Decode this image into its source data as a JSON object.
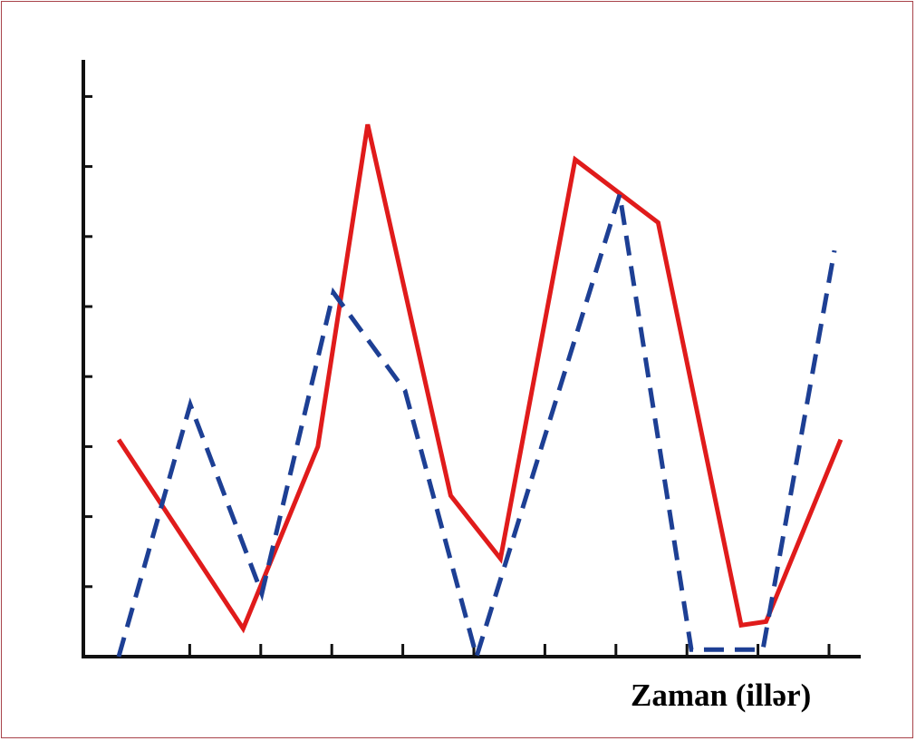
{
  "chart_data": {
    "type": "line",
    "xlabel": "Zaman (illər)",
    "ylabel": "",
    "title": "",
    "x_ticks": 10,
    "y_ticks": 8,
    "series": [
      {
        "style": "solid",
        "color": "#e01b1b",
        "points": [
          [
            0.5,
            3.1
          ],
          [
            2.0,
            0.4
          ],
          [
            2.9,
            3.0
          ],
          [
            3.5,
            7.6
          ],
          [
            4.5,
            2.3
          ],
          [
            5.1,
            1.4
          ],
          [
            6.0,
            7.1
          ],
          [
            7.0,
            6.2
          ],
          [
            8.0,
            0.45
          ],
          [
            8.3,
            0.5
          ],
          [
            9.2,
            3.1
          ]
        ]
      },
      {
        "style": "dashed",
        "color": "#1d3f94",
        "points": [
          [
            0.5,
            0.0
          ],
          [
            1.5,
            3.6
          ],
          [
            2.5,
            0.9
          ],
          [
            3.5,
            5.2
          ],
          [
            4.5,
            3.8
          ],
          [
            5.5,
            0.0
          ],
          [
            7.5,
            6.6
          ],
          [
            8.5,
            0.1
          ],
          [
            9.5,
            0.1
          ],
          [
            10.5,
            5.8
          ]
        ]
      }
    ]
  }
}
